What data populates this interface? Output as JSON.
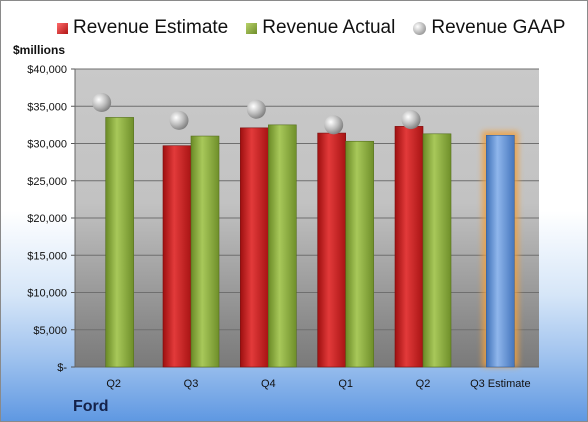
{
  "company": "Ford",
  "legend": {
    "estimate": "Revenue Estimate",
    "actual": "Revenue Actual",
    "gaap": "Revenue GAAP"
  },
  "chart_data": {
    "type": "bar",
    "ylabel": "$millions",
    "ylim": [
      0,
      40000
    ],
    "yticks": [
      "$-",
      "$5,000",
      "$10,000",
      "$15,000",
      "$20,000",
      "$25,000",
      "$30,000",
      "$35,000",
      "$40,000"
    ],
    "categories": [
      "Q2",
      "Q3",
      "Q4",
      "Q1",
      "Q2",
      "Q3 Estimate"
    ],
    "series": [
      {
        "name": "Revenue Estimate",
        "type": "bar",
        "values": [
          null,
          29700,
          32100,
          31400,
          32300,
          31100
        ]
      },
      {
        "name": "Revenue Actual",
        "type": "bar",
        "values": [
          33500,
          31000,
          32500,
          30300,
          31300,
          null
        ]
      },
      {
        "name": "Revenue GAAP",
        "type": "scatter",
        "values": [
          35500,
          33100,
          34600,
          32500,
          33200,
          null
        ]
      }
    ],
    "grid": true,
    "legend_position": "top",
    "colors": {
      "estimate": "#c42020",
      "actual": "#8aab3c",
      "gaap": "#b8b8b8",
      "forecast": "#5b8fd6",
      "highlight": "#f0a040"
    }
  }
}
